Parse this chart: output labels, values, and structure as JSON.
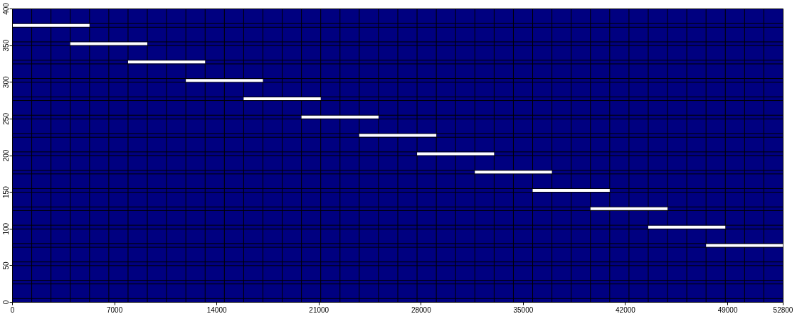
{
  "chart_data": {
    "type": "line",
    "line_style": "solid",
    "xlim": [
      0,
      52800
    ],
    "ylim": [
      0,
      400
    ],
    "xticks": [
      0,
      7000,
      14000,
      21000,
      28000,
      35000,
      42000,
      49000,
      52800
    ],
    "yticks": [
      0,
      50,
      100,
      150,
      200,
      250,
      300,
      350,
      400
    ],
    "series": [
      {
        "color": "#ffffff",
        "x": [
          0,
          5280
        ],
        "values": [
          377.5,
          377.5
        ]
      },
      {
        "color": "#ffffff",
        "x": [
          3960,
          9240
        ],
        "values": [
          352.5,
          352.5
        ]
      },
      {
        "color": "#ffffff",
        "x": [
          7920,
          13200
        ],
        "values": [
          327.5,
          327.5
        ]
      },
      {
        "color": "#ffffff",
        "x": [
          11880,
          17160
        ],
        "values": [
          302.5,
          302.5
        ]
      },
      {
        "color": "#ffffff",
        "x": [
          15840,
          21120
        ],
        "values": [
          277.5,
          277.5
        ]
      },
      {
        "color": "#ffffff",
        "x": [
          19800,
          25080
        ],
        "values": [
          252.5,
          252.5
        ]
      },
      {
        "color": "#ffffff",
        "x": [
          23760,
          29040
        ],
        "values": [
          227.5,
          227.5
        ]
      },
      {
        "color": "#ffffff",
        "x": [
          27720,
          33000
        ],
        "values": [
          202.5,
          202.5
        ]
      },
      {
        "color": "#ffffff",
        "x": [
          31680,
          36960
        ],
        "values": [
          177.5,
          177.5
        ]
      },
      {
        "color": "#ffffff",
        "x": [
          35640,
          40920
        ],
        "values": [
          152.5,
          152.5
        ]
      },
      {
        "color": "#ffffff",
        "x": [
          39600,
          44880
        ],
        "values": [
          127.5,
          127.5
        ]
      },
      {
        "color": "#ffffff",
        "x": [
          43560,
          48840
        ],
        "values": [
          102.5,
          102.5
        ]
      },
      {
        "color": "#ffffff",
        "x": [
          47520,
          52800
        ],
        "values": [
          77.5,
          77.5
        ]
      }
    ],
    "ref_lines": [
      {
        "axis": "x",
        "value": 1320,
        "color": "#000000"
      },
      {
        "axis": "x",
        "value": 2640,
        "color": "#000000"
      },
      {
        "axis": "x",
        "value": 3960,
        "color": "#000000"
      },
      {
        "axis": "x",
        "value": 5280,
        "color": "#000000"
      },
      {
        "axis": "x",
        "value": 6600,
        "color": "#000000"
      },
      {
        "axis": "x",
        "value": 7920,
        "color": "#000000"
      },
      {
        "axis": "x",
        "value": 9240,
        "color": "#000000"
      },
      {
        "axis": "x",
        "value": 10560,
        "color": "#000000"
      },
      {
        "axis": "x",
        "value": 11880,
        "color": "#000000"
      },
      {
        "axis": "x",
        "value": 13200,
        "color": "#000000"
      },
      {
        "axis": "x",
        "value": 14520,
        "color": "#000000"
      },
      {
        "axis": "x",
        "value": 15840,
        "color": "#000000"
      },
      {
        "axis": "x",
        "value": 17160,
        "color": "#000000"
      },
      {
        "axis": "x",
        "value": 18480,
        "color": "#000000"
      },
      {
        "axis": "x",
        "value": 19800,
        "color": "#000000"
      },
      {
        "axis": "x",
        "value": 21120,
        "color": "#000000"
      },
      {
        "axis": "x",
        "value": 22440,
        "color": "#000000"
      },
      {
        "axis": "x",
        "value": 23760,
        "color": "#000000"
      },
      {
        "axis": "x",
        "value": 25080,
        "color": "#000000"
      },
      {
        "axis": "x",
        "value": 26400,
        "color": "#000000"
      },
      {
        "axis": "x",
        "value": 27720,
        "color": "#000000"
      },
      {
        "axis": "x",
        "value": 29040,
        "color": "#000000"
      },
      {
        "axis": "x",
        "value": 30360,
        "color": "#000000"
      },
      {
        "axis": "x",
        "value": 31680,
        "color": "#000000"
      },
      {
        "axis": "x",
        "value": 33000,
        "color": "#000000"
      },
      {
        "axis": "x",
        "value": 34320,
        "color": "#000000"
      },
      {
        "axis": "x",
        "value": 35640,
        "color": "#000000"
      },
      {
        "axis": "x",
        "value": 36960,
        "color": "#000000"
      },
      {
        "axis": "x",
        "value": 38280,
        "color": "#000000"
      },
      {
        "axis": "x",
        "value": 39600,
        "color": "#000000"
      },
      {
        "axis": "x",
        "value": 40920,
        "color": "#000000"
      },
      {
        "axis": "x",
        "value": 42240,
        "color": "#000000"
      },
      {
        "axis": "x",
        "value": 43560,
        "color": "#000000"
      },
      {
        "axis": "x",
        "value": 44880,
        "color": "#000000"
      },
      {
        "axis": "x",
        "value": 46200,
        "color": "#000000"
      },
      {
        "axis": "x",
        "value": 47520,
        "color": "#000000"
      },
      {
        "axis": "x",
        "value": 48840,
        "color": "#000000"
      },
      {
        "axis": "x",
        "value": 50160,
        "color": "#000000"
      },
      {
        "axis": "x",
        "value": 51480,
        "color": "#000000"
      },
      {
        "axis": "y",
        "value": 5,
        "color": "#000000"
      },
      {
        "axis": "y",
        "value": 25,
        "color": "#000000"
      },
      {
        "axis": "y",
        "value": 30,
        "color": "#000000"
      },
      {
        "axis": "y",
        "value": 50,
        "color": "#000000"
      },
      {
        "axis": "y",
        "value": 55,
        "color": "#000000"
      },
      {
        "axis": "y",
        "value": 75,
        "color": "#000000"
      },
      {
        "axis": "y",
        "value": 80,
        "color": "#000000"
      },
      {
        "axis": "y",
        "value": 100,
        "color": "#000000"
      },
      {
        "axis": "y",
        "value": 105,
        "color": "#000000"
      },
      {
        "axis": "y",
        "value": 125,
        "color": "#000000"
      },
      {
        "axis": "y",
        "value": 130,
        "color": "#000000"
      },
      {
        "axis": "y",
        "value": 150,
        "color": "#000000"
      },
      {
        "axis": "y",
        "value": 155,
        "color": "#000000"
      },
      {
        "axis": "y",
        "value": 175,
        "color": "#000000"
      },
      {
        "axis": "y",
        "value": 180,
        "color": "#000000"
      },
      {
        "axis": "y",
        "value": 200,
        "color": "#000000"
      },
      {
        "axis": "y",
        "value": 205,
        "color": "#000000"
      },
      {
        "axis": "y",
        "value": 225,
        "color": "#000000"
      },
      {
        "axis": "y",
        "value": 230,
        "color": "#000000"
      },
      {
        "axis": "y",
        "value": 250,
        "color": "#000000"
      },
      {
        "axis": "y",
        "value": 255,
        "color": "#000000"
      },
      {
        "axis": "y",
        "value": 275,
        "color": "#000000"
      },
      {
        "axis": "y",
        "value": 280,
        "color": "#000000"
      },
      {
        "axis": "y",
        "value": 300,
        "color": "#000000"
      },
      {
        "axis": "y",
        "value": 305,
        "color": "#000000"
      },
      {
        "axis": "y",
        "value": 325,
        "color": "#000000"
      },
      {
        "axis": "y",
        "value": 330,
        "color": "#000000"
      },
      {
        "axis": "y",
        "value": 350,
        "color": "#000000"
      },
      {
        "axis": "y",
        "value": 355,
        "color": "#000000"
      },
      {
        "axis": "y",
        "value": 375,
        "color": "#000000"
      },
      {
        "axis": "y",
        "value": 380,
        "color": "#000000"
      }
    ]
  }
}
